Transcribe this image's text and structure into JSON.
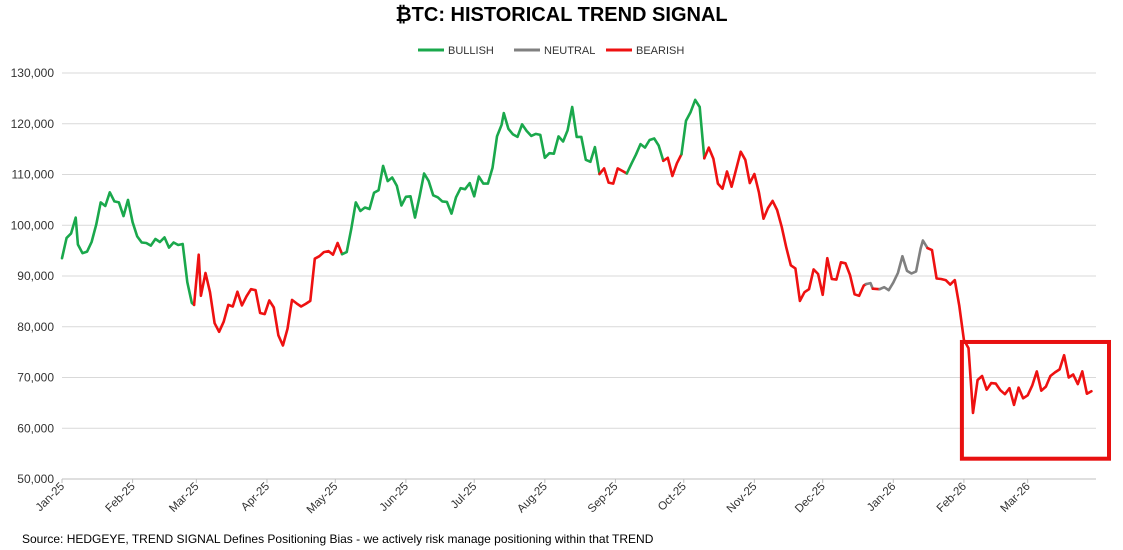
{
  "title": "₿TC: HISTORICAL TREND SIGNAL",
  "source": "Source: HEDGEYE,  TREND SIGNAL Defines Positioning Bias - we actively risk manage positioning within that TREND",
  "colors": {
    "BULLISH": "#1aa84c",
    "NEUTRAL": "#808080",
    "BEARISH": "#ee1111",
    "highlight": "#e81010",
    "grid": "#d9d9d9"
  },
  "chart_data": {
    "type": "line",
    "title": "₿TC: HISTORICAL TREND SIGNAL",
    "xlabel": "",
    "ylabel": "",
    "ylim": [
      50000,
      130000
    ],
    "yticks": [
      "50,000",
      "60,000",
      "70,000",
      "80,000",
      "90,000",
      "100,000",
      "110,000",
      "120,000",
      "130,000"
    ],
    "xticks": [
      "Jan-25",
      "Feb-25",
      "Mar-25",
      "Apr-25",
      "May-25",
      "Jun-25",
      "Jul-25",
      "Aug-25",
      "Sep-25",
      "Oct-25",
      "Nov-25",
      "Dec-25",
      "Jan-26",
      "Feb-26",
      "Mar-26"
    ],
    "grid": "horizontal",
    "legend_placement": "top-center",
    "legend": [
      "BULLISH",
      "NEUTRAL",
      "BEARISH"
    ],
    "highlight_box": {
      "x_range": [
        "2026-02-01",
        "2026-03-31"
      ],
      "y_range": [
        54000,
        77000
      ]
    },
    "segments": [
      {
        "signal": "BULLISH",
        "points": [
          [
            "2025-01-01",
            93500
          ],
          [
            "2025-01-03",
            97500
          ],
          [
            "2025-01-05",
            98400
          ],
          [
            "2025-01-07",
            101500
          ],
          [
            "2025-01-08",
            96200
          ],
          [
            "2025-01-10",
            94500
          ],
          [
            "2025-01-12",
            94800
          ],
          [
            "2025-01-14",
            96700
          ],
          [
            "2025-01-16",
            100100
          ],
          [
            "2025-01-18",
            104500
          ],
          [
            "2025-01-20",
            103800
          ],
          [
            "2025-01-22",
            106500
          ],
          [
            "2025-01-24",
            104700
          ],
          [
            "2025-01-26",
            104500
          ],
          [
            "2025-01-28",
            101800
          ],
          [
            "2025-01-30",
            105000
          ],
          [
            "2025-02-01",
            100600
          ],
          [
            "2025-02-03",
            97800
          ],
          [
            "2025-02-05",
            96600
          ],
          [
            "2025-02-07",
            96500
          ],
          [
            "2025-02-09",
            96000
          ],
          [
            "2025-02-11",
            97300
          ],
          [
            "2025-02-13",
            96700
          ],
          [
            "2025-02-15",
            97600
          ],
          [
            "2025-02-17",
            95600
          ],
          [
            "2025-02-19",
            96600
          ],
          [
            "2025-02-21",
            96100
          ],
          [
            "2025-02-23",
            96300
          ],
          [
            "2025-02-25",
            88800
          ],
          [
            "2025-02-27",
            84700
          ],
          [
            "2025-02-28",
            84300
          ]
        ]
      },
      {
        "signal": "BEARISH",
        "points": [
          [
            "2025-02-28",
            84300
          ],
          [
            "2025-03-02",
            94200
          ],
          [
            "2025-03-03",
            86100
          ],
          [
            "2025-03-05",
            90600
          ],
          [
            "2025-03-07",
            86800
          ],
          [
            "2025-03-09",
            80700
          ],
          [
            "2025-03-11",
            79000
          ],
          [
            "2025-03-13",
            81000
          ],
          [
            "2025-03-15",
            84300
          ],
          [
            "2025-03-17",
            84000
          ],
          [
            "2025-03-19",
            86900
          ],
          [
            "2025-03-21",
            84200
          ],
          [
            "2025-03-23",
            86000
          ],
          [
            "2025-03-25",
            87400
          ],
          [
            "2025-03-27",
            87200
          ],
          [
            "2025-03-29",
            82700
          ],
          [
            "2025-03-31",
            82500
          ],
          [
            "2025-04-02",
            85200
          ],
          [
            "2025-04-04",
            83800
          ],
          [
            "2025-04-06",
            78300
          ],
          [
            "2025-04-08",
            76300
          ],
          [
            "2025-04-10",
            79600
          ],
          [
            "2025-04-12",
            85300
          ],
          [
            "2025-04-14",
            84600
          ],
          [
            "2025-04-16",
            84000
          ],
          [
            "2025-04-18",
            84500
          ],
          [
            "2025-04-20",
            85100
          ],
          [
            "2025-04-22",
            93400
          ],
          [
            "2025-04-24",
            93900
          ],
          [
            "2025-04-26",
            94700
          ],
          [
            "2025-04-28",
            94900
          ],
          [
            "2025-04-30",
            94200
          ],
          [
            "2025-05-02",
            96500
          ],
          [
            "2025-05-04",
            94300
          ]
        ]
      },
      {
        "signal": "BULLISH",
        "points": [
          [
            "2025-05-04",
            94300
          ],
          [
            "2025-05-06",
            94700
          ],
          [
            "2025-05-08",
            99200
          ],
          [
            "2025-05-10",
            104500
          ],
          [
            "2025-05-12",
            102800
          ],
          [
            "2025-05-14",
            103500
          ],
          [
            "2025-05-16",
            103200
          ],
          [
            "2025-05-18",
            106400
          ],
          [
            "2025-05-20",
            106900
          ],
          [
            "2025-05-22",
            111700
          ],
          [
            "2025-05-24",
            108700
          ],
          [
            "2025-05-26",
            109400
          ],
          [
            "2025-05-28",
            107800
          ],
          [
            "2025-05-30",
            103900
          ],
          [
            "2025-06-01",
            105600
          ],
          [
            "2025-06-03",
            105700
          ],
          [
            "2025-06-05",
            101500
          ],
          [
            "2025-06-07",
            105700
          ],
          [
            "2025-06-09",
            110200
          ],
          [
            "2025-06-11",
            108700
          ],
          [
            "2025-06-13",
            105900
          ],
          [
            "2025-06-15",
            105500
          ],
          [
            "2025-06-17",
            104700
          ],
          [
            "2025-06-19",
            104600
          ],
          [
            "2025-06-21",
            102300
          ],
          [
            "2025-06-23",
            105500
          ],
          [
            "2025-06-25",
            107300
          ],
          [
            "2025-06-27",
            107100
          ],
          [
            "2025-06-29",
            108300
          ],
          [
            "2025-07-01",
            105700
          ],
          [
            "2025-07-03",
            109600
          ],
          [
            "2025-07-05",
            108200
          ],
          [
            "2025-07-07",
            108200
          ],
          [
            "2025-07-09",
            111300
          ],
          [
            "2025-07-11",
            117500
          ],
          [
            "2025-07-13",
            119800
          ],
          [
            "2025-07-14",
            122100
          ],
          [
            "2025-07-16",
            119000
          ],
          [
            "2025-07-18",
            117900
          ],
          [
            "2025-07-20",
            117400
          ],
          [
            "2025-07-22",
            119900
          ],
          [
            "2025-07-24",
            118600
          ],
          [
            "2025-07-26",
            117600
          ],
          [
            "2025-07-28",
            118000
          ],
          [
            "2025-07-30",
            117800
          ],
          [
            "2025-08-01",
            113300
          ],
          [
            "2025-08-03",
            114200
          ],
          [
            "2025-08-05",
            114100
          ],
          [
            "2025-08-07",
            117500
          ],
          [
            "2025-08-09",
            116500
          ],
          [
            "2025-08-11",
            118700
          ],
          [
            "2025-08-13",
            123300
          ],
          [
            "2025-08-15",
            117400
          ],
          [
            "2025-08-17",
            117400
          ],
          [
            "2025-08-19",
            112900
          ],
          [
            "2025-08-21",
            112500
          ],
          [
            "2025-08-23",
            115400
          ],
          [
            "2025-08-25",
            110100
          ]
        ]
      },
      {
        "signal": "BEARISH",
        "points": [
          [
            "2025-08-25",
            110100
          ],
          [
            "2025-08-27",
            111200
          ],
          [
            "2025-08-29",
            108400
          ],
          [
            "2025-08-31",
            108200
          ],
          [
            "2025-09-02",
            111200
          ],
          [
            "2025-09-04",
            110700
          ],
          [
            "2025-09-06",
            110200
          ]
        ]
      },
      {
        "signal": "BULLISH",
        "points": [
          [
            "2025-09-06",
            110200
          ],
          [
            "2025-09-08",
            112100
          ],
          [
            "2025-09-10",
            113900
          ],
          [
            "2025-09-12",
            116000
          ],
          [
            "2025-09-14",
            115300
          ],
          [
            "2025-09-16",
            116800
          ],
          [
            "2025-09-18",
            117100
          ],
          [
            "2025-09-20",
            115700
          ],
          [
            "2025-09-22",
            112700
          ]
        ]
      },
      {
        "signal": "BEARISH",
        "points": [
          [
            "2025-09-22",
            112700
          ],
          [
            "2025-09-24",
            113300
          ],
          [
            "2025-09-26",
            109700
          ],
          [
            "2025-09-28",
            112200
          ],
          [
            "2025-09-30",
            114000
          ]
        ]
      },
      {
        "signal": "BULLISH",
        "points": [
          [
            "2025-09-30",
            114000
          ],
          [
            "2025-10-02",
            120600
          ],
          [
            "2025-10-04",
            122300
          ],
          [
            "2025-10-06",
            124700
          ],
          [
            "2025-10-08",
            123300
          ],
          [
            "2025-10-10",
            113200
          ]
        ]
      },
      {
        "signal": "BEARISH",
        "points": [
          [
            "2025-10-10",
            113200
          ],
          [
            "2025-10-12",
            115300
          ],
          [
            "2025-10-14",
            113100
          ],
          [
            "2025-10-16",
            108200
          ],
          [
            "2025-10-18",
            107200
          ],
          [
            "2025-10-20",
            110600
          ],
          [
            "2025-10-22",
            107600
          ],
          [
            "2025-10-24",
            111000
          ],
          [
            "2025-10-26",
            114500
          ],
          [
            "2025-10-28",
            112900
          ],
          [
            "2025-10-30",
            108300
          ],
          [
            "2025-11-01",
            110100
          ],
          [
            "2025-11-03",
            106500
          ],
          [
            "2025-11-05",
            101300
          ],
          [
            "2025-11-07",
            103400
          ],
          [
            "2025-11-09",
            104800
          ],
          [
            "2025-11-11",
            103000
          ],
          [
            "2025-11-13",
            99700
          ],
          [
            "2025-11-15",
            95600
          ],
          [
            "2025-11-17",
            92100
          ],
          [
            "2025-11-19",
            91500
          ],
          [
            "2025-11-21",
            85100
          ],
          [
            "2025-11-23",
            86800
          ],
          [
            "2025-11-25",
            87400
          ],
          [
            "2025-11-27",
            91300
          ],
          [
            "2025-11-29",
            90400
          ],
          [
            "2025-12-01",
            86300
          ],
          [
            "2025-12-03",
            93500
          ],
          [
            "2025-12-05",
            89400
          ],
          [
            "2025-12-07",
            89300
          ],
          [
            "2025-12-09",
            92700
          ],
          [
            "2025-12-11",
            92500
          ],
          [
            "2025-12-13",
            90200
          ],
          [
            "2025-12-15",
            86400
          ],
          [
            "2025-12-17",
            86100
          ],
          [
            "2025-12-19",
            88100
          ],
          [
            "2025-12-20",
            88400
          ]
        ]
      },
      {
        "signal": "NEUTRAL",
        "points": [
          [
            "2025-12-20",
            88400
          ],
          [
            "2025-12-22",
            88600
          ],
          [
            "2025-12-23",
            87500
          ]
        ]
      },
      {
        "signal": "BEARISH",
        "points": [
          [
            "2025-12-23",
            87500
          ],
          [
            "2025-12-26",
            87400
          ]
        ]
      },
      {
        "signal": "NEUTRAL",
        "points": [
          [
            "2025-12-26",
            87400
          ],
          [
            "2025-12-28",
            87800
          ],
          [
            "2025-12-30",
            87200
          ],
          [
            "2026-01-01",
            88700
          ],
          [
            "2026-01-03",
            90600
          ],
          [
            "2026-01-05",
            93900
          ],
          [
            "2026-01-07",
            91000
          ],
          [
            "2026-01-09",
            90500
          ],
          [
            "2026-01-11",
            90900
          ],
          [
            "2026-01-13",
            95400
          ],
          [
            "2026-01-14",
            97000
          ],
          [
            "2026-01-16",
            95500
          ]
        ]
      },
      {
        "signal": "BEARISH",
        "points": [
          [
            "2026-01-16",
            95500
          ],
          [
            "2026-01-18",
            95100
          ],
          [
            "2026-01-20",
            89500
          ],
          [
            "2026-01-22",
            89400
          ],
          [
            "2026-01-24",
            89200
          ],
          [
            "2026-01-26",
            88300
          ],
          [
            "2026-01-28",
            89200
          ],
          [
            "2026-01-30",
            84100
          ],
          [
            "2026-02-01",
            77400
          ],
          [
            "2026-02-03",
            75800
          ],
          [
            "2026-02-05",
            63000
          ],
          [
            "2026-02-07",
            69500
          ],
          [
            "2026-02-09",
            70300
          ],
          [
            "2026-02-11",
            67600
          ],
          [
            "2026-02-13",
            68900
          ],
          [
            "2026-02-15",
            68800
          ],
          [
            "2026-02-17",
            67500
          ],
          [
            "2026-02-19",
            66700
          ],
          [
            "2026-02-21",
            67900
          ],
          [
            "2026-02-23",
            64600
          ],
          [
            "2026-02-25",
            68000
          ],
          [
            "2026-02-27",
            65900
          ],
          [
            "2026-03-01",
            66500
          ],
          [
            "2026-03-03",
            68400
          ],
          [
            "2026-03-05",
            71200
          ],
          [
            "2026-03-07",
            67400
          ],
          [
            "2026-03-09",
            68200
          ],
          [
            "2026-03-11",
            70300
          ],
          [
            "2026-03-13",
            71000
          ],
          [
            "2026-03-15",
            71600
          ],
          [
            "2026-03-17",
            74400
          ],
          [
            "2026-03-19",
            70000
          ],
          [
            "2026-03-21",
            70600
          ],
          [
            "2026-03-23",
            68700
          ],
          [
            "2026-03-25",
            71200
          ],
          [
            "2026-03-27",
            66800
          ],
          [
            "2026-03-29",
            67300
          ]
        ]
      }
    ]
  }
}
